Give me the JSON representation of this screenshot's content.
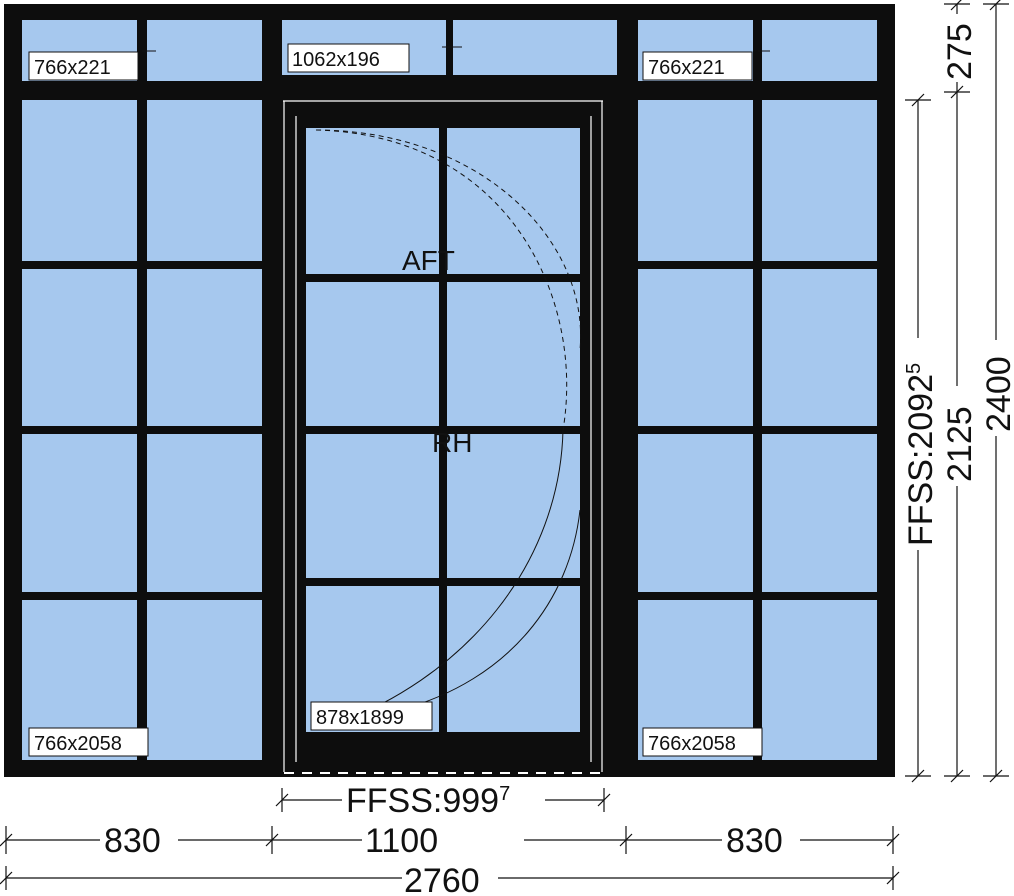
{
  "colors": {
    "frame": "#0d0d0d",
    "glass": "#a6c8ee",
    "line": "#111111",
    "background": "#ffffff"
  },
  "panels": {
    "left_top": "766x221",
    "center_top": "1062x196",
    "right_top": "766x221",
    "left_bottom": "766x2058",
    "door": "878x1899",
    "right_bottom": "766x2058"
  },
  "door": {
    "opening_label": "AFT",
    "hand_label": "RH"
  },
  "dimensions": {
    "width_left": "830",
    "width_center": "1100",
    "width_right": "830",
    "width_total": "2760",
    "door_ffss_width": "FFSS:999",
    "door_ffss_width_sup": "7",
    "height_top": "275",
    "height_door_ffss": "FFSS:2092",
    "height_door_ffss_sup": "5",
    "height_door": "2125",
    "height_total": "2400"
  }
}
